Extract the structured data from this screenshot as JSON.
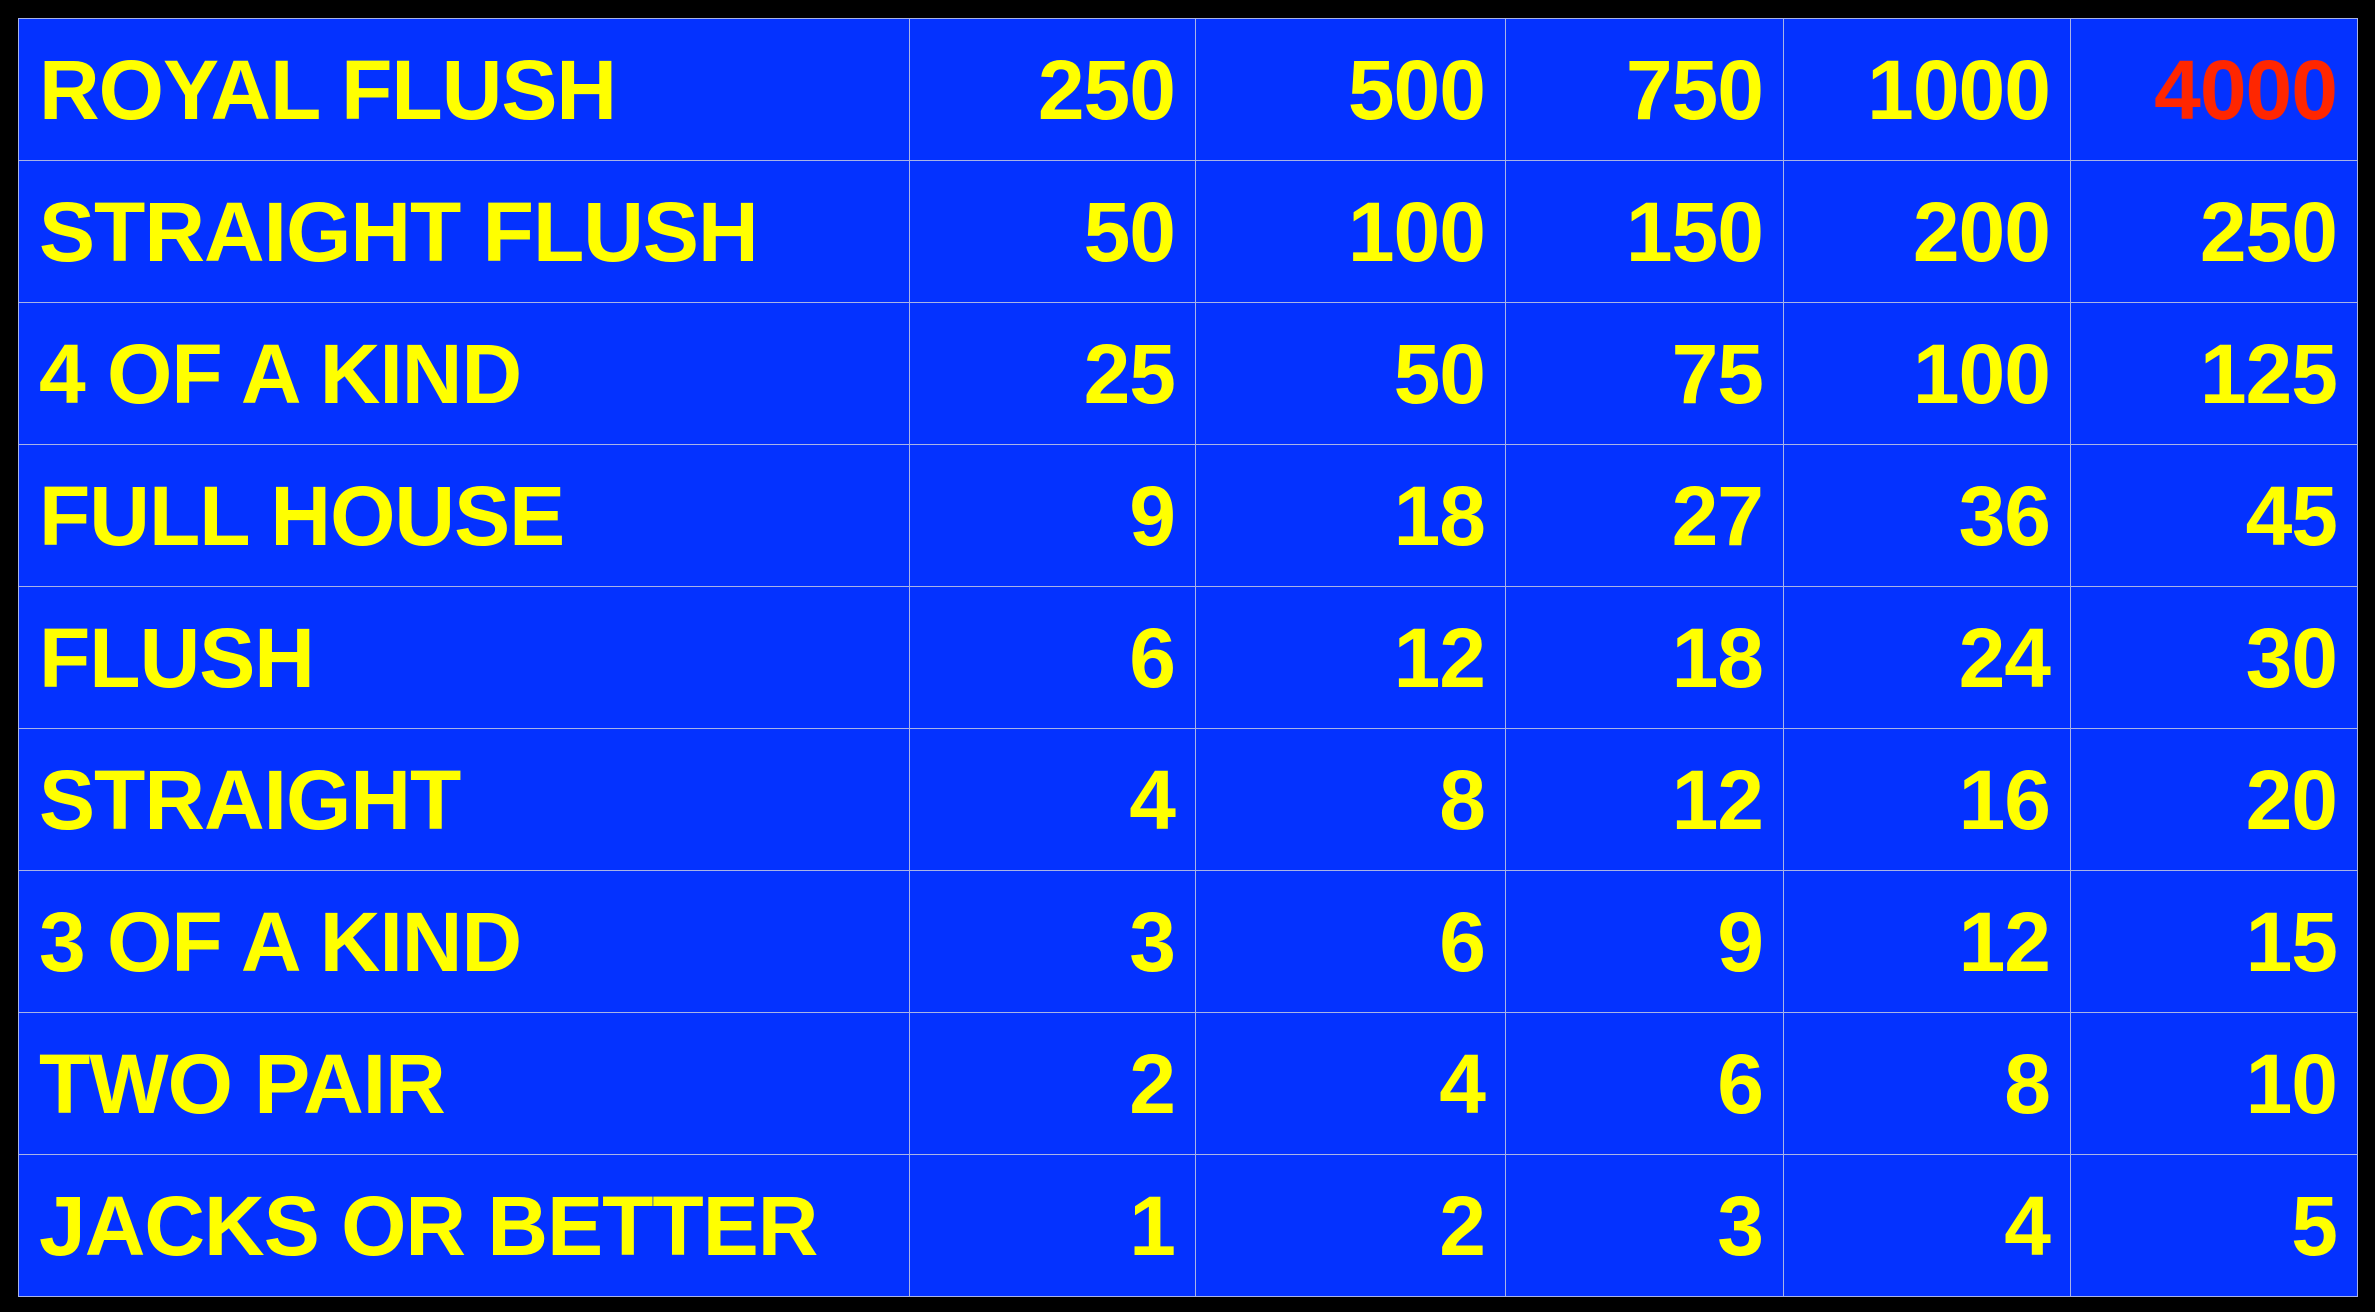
{
  "colors": {
    "background": "#000000",
    "table_fill": "#0432ff",
    "grid_line": "#a9b3e6",
    "text": "#ffff00",
    "highlight": "#ff2600"
  },
  "paytable": {
    "rows": [
      {
        "hand": "ROYAL FLUSH",
        "payouts": [
          "250",
          "500",
          "750",
          "1000",
          "4000"
        ],
        "highlight_index": 4
      },
      {
        "hand": "STRAIGHT FLUSH",
        "payouts": [
          "50",
          "100",
          "150",
          "200",
          "250"
        ]
      },
      {
        "hand": "4 OF A KIND",
        "payouts": [
          "25",
          "50",
          "75",
          "100",
          "125"
        ]
      },
      {
        "hand": "FULL HOUSE",
        "payouts": [
          "9",
          "18",
          "27",
          "36",
          "45"
        ]
      },
      {
        "hand": "FLUSH",
        "payouts": [
          "6",
          "12",
          "18",
          "24",
          "30"
        ]
      },
      {
        "hand": "STRAIGHT",
        "payouts": [
          "4",
          "8",
          "12",
          "16",
          "20"
        ]
      },
      {
        "hand": "3 OF A KIND",
        "payouts": [
          "3",
          "6",
          "9",
          "12",
          "15"
        ]
      },
      {
        "hand": "TWO PAIR",
        "payouts": [
          "2",
          "4",
          "6",
          "8",
          "10"
        ]
      },
      {
        "hand": "JACKS OR BETTER",
        "payouts": [
          "1",
          "2",
          "3",
          "4",
          "5"
        ]
      }
    ]
  }
}
